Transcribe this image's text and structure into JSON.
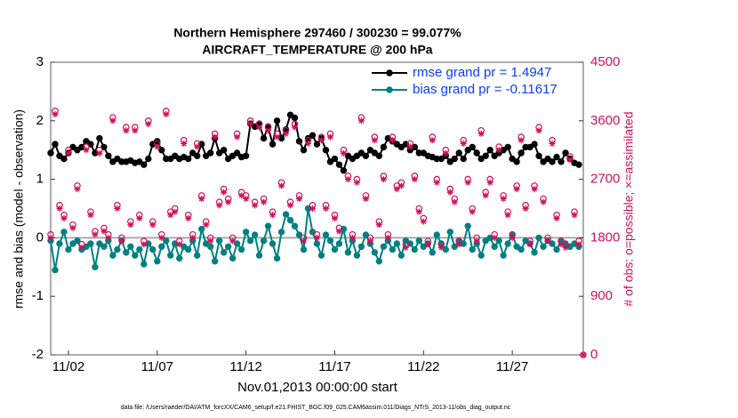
{
  "chart_data": {
    "type": "line",
    "title": "Northern Hemisphere 297460 / 300230 = 99.077%",
    "subtitle": "AIRCRAFT_TEMPERATURE @ 200 hPa",
    "xlabel": "Nov.01,2013 00:00:00 start",
    "ylabel": "rmse and bias (model - observation)",
    "y2label": "# of obs: o=possible; ×=assimilated",
    "footnote": "data file: /Users/raeder/DAI/ATM_forcXX/CAM6_setup/f.e21.FHIST_BGC.f09_025.CAM6assim.011/Diags_NTrS_2013-11/obs_diag_output.nc",
    "xlim": [
      0,
      30
    ],
    "xticks": [
      {
        "value": 1,
        "label": "11/02"
      },
      {
        "value": 6,
        "label": "11/07"
      },
      {
        "value": 11,
        "label": "11/12"
      },
      {
        "value": 16,
        "label": "11/17"
      },
      {
        "value": 21,
        "label": "11/22"
      },
      {
        "value": 26,
        "label": "11/27"
      }
    ],
    "ylim": [
      -2,
      3
    ],
    "yticks": [
      -2,
      -1,
      0,
      1,
      2,
      3
    ],
    "y2lim": [
      0,
      4500
    ],
    "y2ticks": [
      0,
      900,
      1800,
      2700,
      3600,
      4500
    ],
    "legend": "upper right",
    "x": [
      0,
      0.25,
      0.5,
      0.75,
      1,
      1.25,
      1.5,
      1.75,
      2,
      2.25,
      2.5,
      2.75,
      3,
      3.25,
      3.5,
      3.75,
      4,
      4.25,
      4.5,
      4.75,
      5,
      5.25,
      5.5,
      5.75,
      6,
      6.25,
      6.5,
      6.75,
      7,
      7.25,
      7.5,
      7.75,
      8,
      8.25,
      8.5,
      8.75,
      9,
      9.25,
      9.5,
      9.75,
      10,
      10.25,
      10.5,
      10.75,
      11,
      11.25,
      11.5,
      11.75,
      12,
      12.25,
      12.5,
      12.75,
      13,
      13.25,
      13.5,
      13.75,
      14,
      14.25,
      14.5,
      14.75,
      15,
      15.25,
      15.5,
      15.75,
      16,
      16.25,
      16.5,
      16.75,
      17,
      17.25,
      17.5,
      17.75,
      18,
      18.25,
      18.5,
      18.75,
      19,
      19.25,
      19.5,
      19.75,
      20,
      20.25,
      20.5,
      20.75,
      21,
      21.25,
      21.5,
      21.75,
      22,
      22.25,
      22.5,
      22.75,
      23,
      23.25,
      23.5,
      23.75,
      24,
      24.25,
      24.5,
      24.75,
      25,
      25.25,
      25.5,
      25.75,
      26,
      26.25,
      26.5,
      26.75,
      27,
      27.25,
      27.5,
      27.75,
      28,
      28.25,
      28.5,
      28.75,
      29,
      29.25,
      29.5,
      29.75,
      30
    ],
    "series": [
      {
        "name": "rmse grand pr = 1.4947",
        "color": "#000000",
        "marker": "dot",
        "values": [
          1.45,
          1.6,
          1.4,
          1.35,
          1.45,
          1.55,
          1.5,
          1.55,
          1.65,
          1.6,
          1.45,
          1.7,
          1.55,
          1.4,
          1.3,
          1.35,
          1.3,
          1.3,
          1.32,
          1.28,
          1.3,
          1.25,
          1.35,
          1.6,
          1.65,
          1.5,
          1.35,
          1.35,
          1.4,
          1.35,
          1.38,
          1.35,
          1.45,
          1.4,
          1.6,
          1.4,
          1.45,
          1.7,
          1.45,
          1.5,
          1.35,
          1.4,
          1.45,
          1.38,
          1.4,
          1.95,
          1.9,
          1.95,
          1.7,
          1.9,
          1.6,
          2.0,
          1.7,
          1.85,
          2.1,
          2.05,
          1.65,
          1.5,
          1.7,
          1.75,
          1.6,
          1.7,
          1.5,
          1.3,
          1.35,
          1.25,
          1.15,
          1.4,
          1.35,
          1.4,
          1.45,
          1.4,
          1.5,
          1.45,
          1.4,
          1.55,
          1.7,
          1.65,
          1.6,
          1.55,
          1.6,
          1.5,
          1.55,
          1.45,
          1.45,
          1.4,
          1.38,
          1.35,
          1.35,
          1.4,
          1.3,
          1.35,
          1.45,
          1.35,
          1.5,
          1.55,
          1.45,
          1.35,
          1.4,
          1.5,
          1.4,
          1.45,
          1.5,
          1.55,
          1.35,
          1.3,
          1.45,
          1.55,
          1.55,
          1.6,
          1.4,
          1.3,
          1.35,
          1.3,
          1.38,
          1.3,
          1.45,
          1.35,
          1.28,
          1.25,
          null
        ]
      },
      {
        "name": "bias grand pr = -0.11617",
        "color": "#008080",
        "marker": "dot",
        "values": [
          -0.05,
          -0.55,
          -0.1,
          0.1,
          -0.2,
          -0.1,
          -0.05,
          -0.2,
          -0.15,
          -0.1,
          -0.5,
          -0.1,
          -0.15,
          -0.05,
          -0.3,
          -0.2,
          -0.05,
          -0.25,
          -0.15,
          -0.3,
          -0.2,
          -0.45,
          -0.1,
          -0.2,
          -0.4,
          -0.15,
          -0.05,
          -0.3,
          -0.1,
          -0.35,
          -0.15,
          -0.2,
          -0.05,
          -0.3,
          0.15,
          -0.1,
          -0.15,
          -0.4,
          -0.05,
          -0.25,
          -0.15,
          -0.35,
          -0.1,
          -0.2,
          0.1,
          -0.05,
          0.05,
          -0.3,
          -0.05,
          0.2,
          -0.1,
          -0.35,
          0.1,
          0.4,
          0.3,
          0.2,
          0.05,
          -0.2,
          0.5,
          0.1,
          -0.1,
          -0.3,
          0.05,
          -0.05,
          -0.2,
          -0.1,
          0.15,
          -0.25,
          -0.05,
          -0.3,
          -0.15,
          0.05,
          -0.1,
          -0.25,
          -0.4,
          -0.15,
          -0.05,
          -0.2,
          -0.1,
          -0.3,
          -0.05,
          -0.1,
          -0.2,
          -0.05,
          -0.15,
          -0.1,
          -0.25,
          0.05,
          -0.1,
          -0.2,
          0.1,
          -0.15,
          -0.05,
          -0.1,
          0.2,
          -0.2,
          -0.1,
          -0.3,
          -0.05,
          0.0,
          -0.15,
          -0.05,
          -0.3,
          -0.1,
          0.05,
          -0.15,
          -0.2,
          -0.05,
          -0.1,
          -0.25,
          0.0,
          -0.15,
          -0.05,
          -0.1,
          -0.2,
          -0.05,
          -0.1,
          -0.15,
          -0.1,
          -0.15,
          null
        ]
      },
      {
        "color": "#d0105c",
        "marker": "circle",
        "axis": "y2",
        "values": [
          1850,
          3750,
          2300,
          2150,
          3150,
          2000,
          2600,
          1700,
          3200,
          2200,
          1900,
          3150,
          1950,
          1850,
          3650,
          2300,
          1800,
          3500,
          2050,
          3500,
          2150,
          1750,
          3600,
          2050,
          3250,
          1850,
          3750,
          2200,
          2250,
          1750,
          3300,
          2150,
          1850,
          3250,
          2450,
          2050,
          1800,
          3400,
          2350,
          2550,
          2400,
          1800,
          3400,
          2500,
          2450,
          3600,
          2350,
          3550,
          2400,
          3500,
          2200,
          3400,
          2650,
          3450,
          2350,
          3550,
          2450,
          1800,
          3300,
          2300,
          1850,
          3350,
          2300,
          3400,
          2150,
          1950,
          3150,
          2750,
          1850,
          2700,
          3650,
          2450,
          1800,
          3350,
          2050,
          2750,
          1850,
          3350,
          2600,
          2650,
          1700,
          3250,
          2750,
          2250,
          2100,
          1750,
          3350,
          2700,
          1700,
          3150,
          2550,
          2400,
          1750,
          3300,
          2700,
          2250,
          1800,
          3450,
          2500,
          2700,
          1850,
          3200,
          2450,
          2200,
          1850,
          2600,
          3350,
          2300,
          1750,
          2600,
          3500,
          2400,
          1800,
          3300,
          2150,
          1750,
          1700,
          3050,
          2200,
          1750,
          0
        ]
      },
      {
        "color": "#d0105c",
        "marker": "star",
        "axis": "y2",
        "values": [
          1800,
          3700,
          2250,
          2100,
          3100,
          1950,
          2550,
          1650,
          3150,
          2150,
          1850,
          3100,
          1900,
          1800,
          3600,
          2250,
          1750,
          3450,
          2000,
          3450,
          2100,
          1700,
          3550,
          2000,
          3200,
          1800,
          3700,
          2150,
          2200,
          1700,
          3250,
          2100,
          1800,
          3200,
          2400,
          2000,
          1750,
          3350,
          2300,
          2500,
          2350,
          1750,
          3350,
          2450,
          2400,
          3550,
          2300,
          3500,
          2350,
          3450,
          2150,
          3350,
          2600,
          3400,
          2300,
          3500,
          2400,
          1750,
          3250,
          2250,
          1800,
          3300,
          2250,
          3350,
          2100,
          1900,
          3100,
          2700,
          1800,
          2650,
          3600,
          2400,
          1750,
          3300,
          2000,
          2700,
          1800,
          3300,
          2550,
          2600,
          1650,
          3200,
          2700,
          2200,
          2050,
          1700,
          3300,
          2650,
          1650,
          3100,
          2500,
          2350,
          1700,
          3250,
          2650,
          2200,
          1750,
          3400,
          2450,
          2650,
          1800,
          3150,
          2400,
          2150,
          1800,
          2550,
          3300,
          2250,
          1700,
          2550,
          3450,
          2350,
          1750,
          3250,
          2100,
          1700,
          1650,
          3000,
          2150,
          1700,
          0
        ]
      }
    ]
  }
}
